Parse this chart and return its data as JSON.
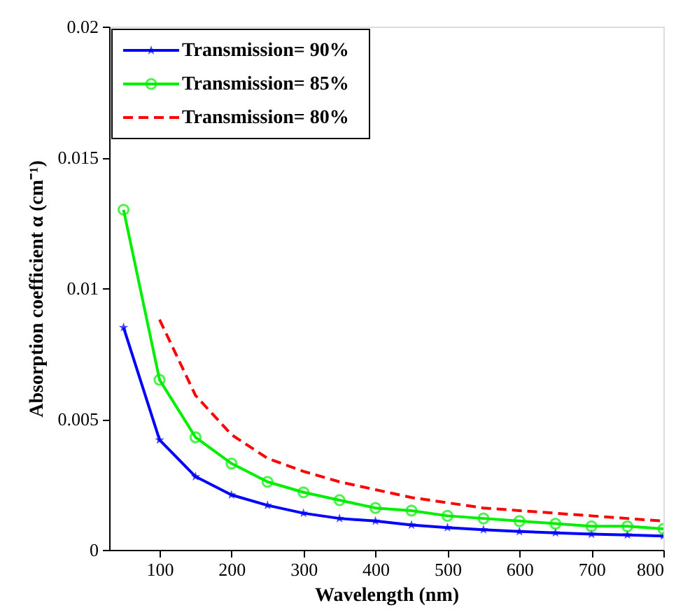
{
  "chart_data": {
    "type": "line",
    "xlabel": "Wavelength (nm)",
    "ylabel": "Absorption coefficient α (cm⁻¹)",
    "x": [
      50,
      100,
      150,
      200,
      250,
      300,
      350,
      400,
      450,
      500,
      550,
      600,
      650,
      700,
      750,
      800
    ],
    "xlim": [
      30,
      800
    ],
    "xticks": [
      100,
      200,
      300,
      400,
      500,
      600,
      700,
      800
    ],
    "ylim": [
      0,
      0.02
    ],
    "yticks": [
      0,
      0.005,
      0.01,
      0.015,
      0.02
    ],
    "grid": false,
    "legend": "top left",
    "series": [
      {
        "name": "Transmission= 90%",
        "color": "#0000ff",
        "marker": "star",
        "line_style": "solid",
        "values": [
          0.0085,
          0.0042,
          0.0028,
          0.0021,
          0.0017,
          0.0014,
          0.0012,
          0.0011,
          0.00095,
          0.00085,
          0.00077,
          0.0007,
          0.00065,
          0.0006,
          0.00057,
          0.00053
        ]
      },
      {
        "name": "Transmission= 85%",
        "color": "#00ee00",
        "marker": "circle",
        "line_style": "solid",
        "values": [
          0.013,
          0.0065,
          0.0043,
          0.0033,
          0.0026,
          0.0022,
          0.0019,
          0.0016,
          0.0015,
          0.0013,
          0.0012,
          0.0011,
          0.001,
          0.0009,
          0.0009,
          0.0008
        ]
      },
      {
        "name": "Transmission= 80%",
        "color": "#ff0000",
        "marker": "none",
        "line_style": "dashed",
        "values": [
          null,
          0.0088,
          0.0059,
          0.0044,
          0.0035,
          0.003,
          0.0026,
          0.0023,
          0.002,
          0.0018,
          0.0016,
          0.0015,
          0.0014,
          0.0013,
          0.0012,
          0.0011
        ]
      }
    ]
  }
}
